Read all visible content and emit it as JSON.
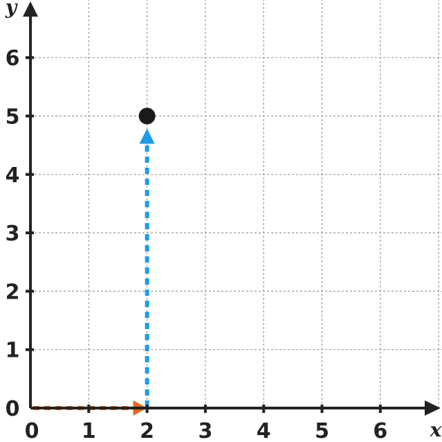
{
  "chart_data": {
    "type": "scatter",
    "title": "",
    "xlabel": "x",
    "ylabel": "y",
    "xlim": [
      0,
      7
    ],
    "ylim": [
      0,
      7
    ],
    "x_ticks": [
      "0",
      "1",
      "2",
      "3",
      "4",
      "5",
      "6"
    ],
    "y_ticks": [
      "0",
      "1",
      "2",
      "3",
      "4",
      "5",
      "6"
    ],
    "grid": true,
    "point": {
      "x": 2,
      "y": 5
    },
    "highlight_x_tick": "2",
    "highlight_y_tick": "5",
    "colors": {
      "axis": "#222222",
      "grid": "#999999",
      "point": "#1a1a1a",
      "x_path": "#e8641b",
      "y_path": "#1e9be9"
    }
  }
}
